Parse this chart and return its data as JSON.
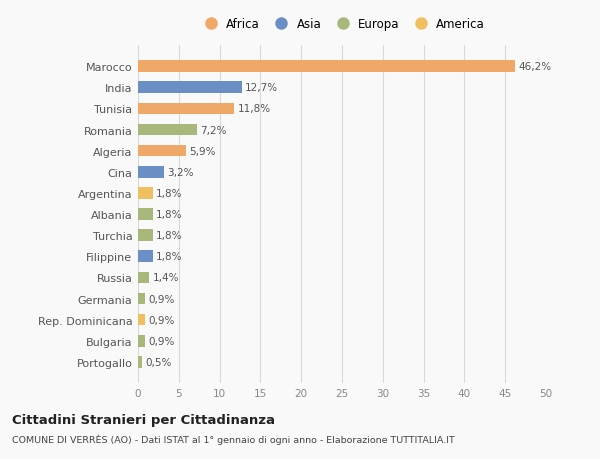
{
  "categories": [
    "Portogallo",
    "Bulgaria",
    "Rep. Dominicana",
    "Germania",
    "Russia",
    "Filippine",
    "Turchia",
    "Albania",
    "Argentina",
    "Cina",
    "Algeria",
    "Romania",
    "Tunisia",
    "India",
    "Marocco"
  ],
  "values": [
    0.5,
    0.9,
    0.9,
    0.9,
    1.4,
    1.8,
    1.8,
    1.8,
    1.8,
    3.2,
    5.9,
    7.2,
    11.8,
    12.7,
    46.2
  ],
  "colors": [
    "#a8b87a",
    "#a8b87a",
    "#f0c060",
    "#a8b87a",
    "#a8b87a",
    "#6b8fc4",
    "#a8b87a",
    "#a8b87a",
    "#f0c060",
    "#6b8fc4",
    "#f0a868",
    "#a8b87a",
    "#f0a868",
    "#6b8fc4",
    "#f0a868"
  ],
  "labels": [
    "0,5%",
    "0,9%",
    "0,9%",
    "0,9%",
    "1,4%",
    "1,8%",
    "1,8%",
    "1,8%",
    "1,8%",
    "3,2%",
    "5,9%",
    "7,2%",
    "11,8%",
    "12,7%",
    "46,2%"
  ],
  "legend": [
    {
      "label": "Africa",
      "color": "#f0a868"
    },
    {
      "label": "Asia",
      "color": "#6b8fc4"
    },
    {
      "label": "Europa",
      "color": "#a8b87a"
    },
    {
      "label": "America",
      "color": "#f0c060"
    }
  ],
  "xlim": [
    0,
    50
  ],
  "xticks": [
    0,
    5,
    10,
    15,
    20,
    25,
    30,
    35,
    40,
    45,
    50
  ],
  "title": "Cittadini Stranieri per Cittadinanza",
  "subtitle": "COMUNE DI VERRÈS (AO) - Dati ISTAT al 1° gennaio di ogni anno - Elaborazione TUTTITALIA.IT",
  "bg_color": "#f9f9f9",
  "grid_color": "#d8d8d8",
  "bar_height": 0.55,
  "label_fontsize": 7.5,
  "ytick_fontsize": 8.0,
  "xtick_fontsize": 7.5,
  "legend_fontsize": 8.5,
  "title_fontsize": 9.5,
  "subtitle_fontsize": 6.8
}
